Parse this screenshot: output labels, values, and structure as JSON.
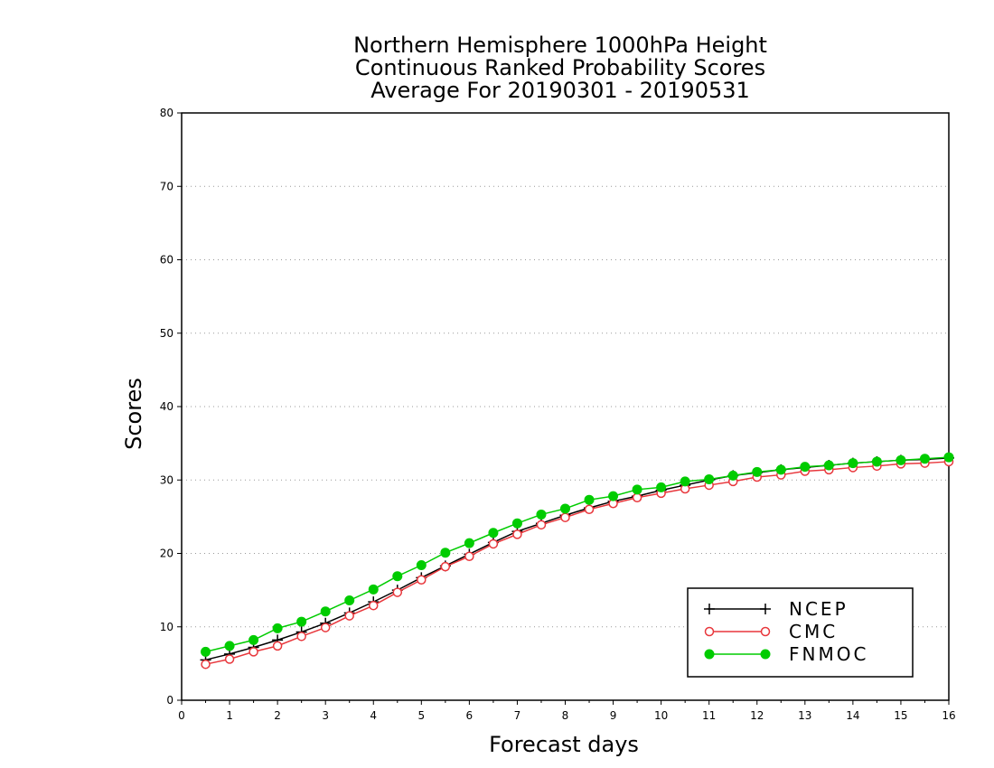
{
  "chart_data": {
    "type": "line",
    "title": [
      "Northern Hemisphere 1000hPa Height",
      "Continuous Ranked Probability Scores",
      "Average For 20190301 - 20190531"
    ],
    "xlabel": "Forecast days",
    "ylabel": "Scores",
    "xlim": [
      0,
      16
    ],
    "ylim": [
      0,
      80
    ],
    "xticks": [
      "0",
      "1",
      "2",
      "3",
      "4",
      "5",
      "6",
      "7",
      "8",
      "9",
      "10",
      "11",
      "12",
      "13",
      "14",
      "15",
      "16"
    ],
    "yticks": [
      "0",
      "10",
      "20",
      "30",
      "40",
      "50",
      "60",
      "70",
      "80"
    ],
    "grid": "horizontal dotted",
    "legend_position": "bottom-right",
    "x": [
      0.5,
      1,
      1.5,
      2,
      2.5,
      3,
      3.5,
      4,
      4.5,
      5,
      5.5,
      6,
      6.5,
      7,
      7.5,
      8,
      8.5,
      9,
      9.5,
      10,
      10.5,
      11,
      11.5,
      12,
      12.5,
      13,
      13.5,
      14,
      14.5,
      15,
      15.5,
      16
    ],
    "series": [
      {
        "name": "NCEP",
        "color": "#000000",
        "marker": "plus",
        "values": [
          5.5,
          6.3,
          7.2,
          8.2,
          9.3,
          10.5,
          11.9,
          13.4,
          15.0,
          16.7,
          18.3,
          19.9,
          21.5,
          23.0,
          24.1,
          25.2,
          26.2,
          27.1,
          27.8,
          28.6,
          29.3,
          30.0,
          30.6,
          31.0,
          31.4,
          31.7,
          32.0,
          32.3,
          32.5,
          32.7,
          32.8,
          33.0
        ]
      },
      {
        "name": "CMC",
        "color": "#e8373c",
        "marker": "open-circle",
        "values": [
          4.9,
          5.6,
          6.6,
          7.4,
          8.7,
          9.9,
          11.5,
          12.9,
          14.7,
          16.4,
          18.2,
          19.6,
          21.3,
          22.6,
          23.9,
          24.9,
          26.0,
          26.8,
          27.6,
          28.2,
          28.8,
          29.3,
          29.8,
          30.4,
          30.7,
          31.2,
          31.4,
          31.7,
          31.9,
          32.2,
          32.3,
          32.5
        ]
      },
      {
        "name": "FNMOC",
        "color": "#00cc00",
        "marker": "filled-circle",
        "values": [
          6.6,
          7.4,
          8.2,
          9.8,
          10.7,
          12.1,
          13.6,
          15.1,
          16.9,
          18.4,
          20.1,
          21.4,
          22.8,
          24.1,
          25.3,
          26.1,
          27.3,
          27.8,
          28.7,
          29.0,
          29.8,
          30.1,
          30.6,
          31.1,
          31.4,
          31.8,
          32.0,
          32.3,
          32.5,
          32.7,
          32.9,
          33.1
        ]
      }
    ]
  }
}
